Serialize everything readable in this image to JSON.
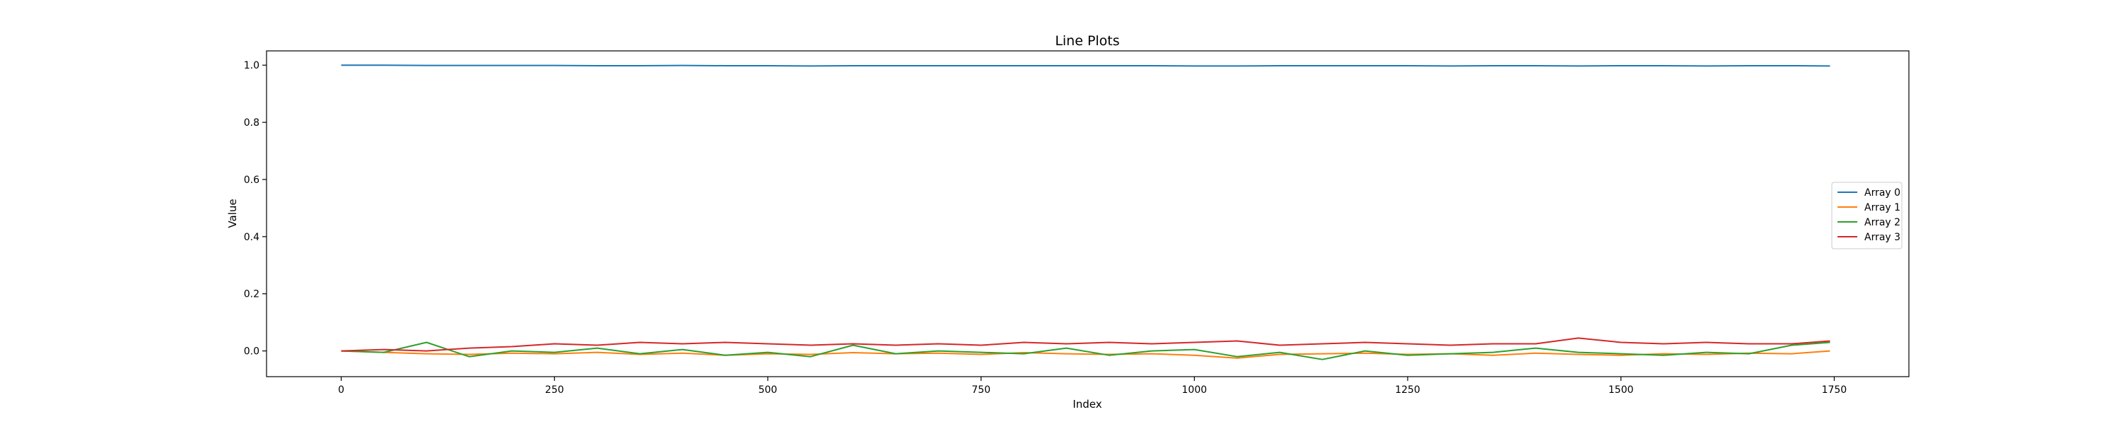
{
  "chart_data": {
    "type": "line",
    "title": "Line Plots",
    "xlabel": "Index",
    "ylabel": "Value",
    "xlim": [
      -87.5,
      1837.5
    ],
    "ylim": [
      -0.09,
      1.05
    ],
    "xticks": [
      0,
      250,
      500,
      750,
      1000,
      1250,
      1500,
      1750
    ],
    "yticks": [
      0.0,
      0.2,
      0.4,
      0.6,
      0.8,
      1.0
    ],
    "xtick_labels": [
      "0",
      "250",
      "500",
      "750",
      "1000",
      "1250",
      "1500",
      "1750"
    ],
    "ytick_labels": [
      "0.0",
      "0.2",
      "0.4",
      "0.6",
      "0.8",
      "1.0"
    ],
    "grid": false,
    "legend_position": "center-right",
    "x": [
      0,
      50,
      100,
      150,
      200,
      250,
      300,
      350,
      400,
      450,
      500,
      550,
      600,
      650,
      700,
      750,
      800,
      850,
      900,
      950,
      1000,
      1050,
      1100,
      1150,
      1200,
      1250,
      1300,
      1350,
      1400,
      1450,
      1500,
      1550,
      1600,
      1650,
      1700,
      1745
    ],
    "series": [
      {
        "name": "Array 0",
        "color": "#1f77b4",
        "values": [
          1.0,
          1.0,
          0.999,
          0.999,
          0.999,
          0.999,
          0.998,
          0.998,
          0.999,
          0.998,
          0.998,
          0.997,
          0.998,
          0.998,
          0.998,
          0.998,
          0.998,
          0.998,
          0.998,
          0.998,
          0.997,
          0.997,
          0.998,
          0.998,
          0.998,
          0.998,
          0.997,
          0.998,
          0.998,
          0.997,
          0.998,
          0.998,
          0.997,
          0.998,
          0.998,
          0.997
        ]
      },
      {
        "name": "Array 1",
        "color": "#ff7f0e",
        "values": [
          0.0,
          -0.005,
          -0.01,
          -0.012,
          -0.008,
          -0.01,
          -0.005,
          -0.012,
          -0.008,
          -0.015,
          -0.01,
          -0.012,
          -0.006,
          -0.01,
          -0.008,
          -0.012,
          -0.006,
          -0.01,
          -0.012,
          -0.01,
          -0.015,
          -0.025,
          -0.012,
          -0.01,
          -0.008,
          -0.012,
          -0.01,
          -0.015,
          -0.008,
          -0.012,
          -0.015,
          -0.01,
          -0.012,
          -0.008,
          -0.01,
          0.0
        ]
      },
      {
        "name": "Array 2",
        "color": "#2ca02c",
        "values": [
          0.0,
          -0.005,
          0.03,
          -0.02,
          0.0,
          -0.005,
          0.01,
          -0.01,
          0.005,
          -0.015,
          -0.005,
          -0.02,
          0.02,
          -0.01,
          0.0,
          -0.005,
          -0.01,
          0.01,
          -0.015,
          0.0,
          0.005,
          -0.02,
          -0.005,
          -0.03,
          0.0,
          -0.015,
          -0.01,
          -0.005,
          0.01,
          -0.005,
          -0.01,
          -0.015,
          -0.005,
          -0.01,
          0.02,
          0.03
        ]
      },
      {
        "name": "Array 3",
        "color": "#d62728",
        "values": [
          0.0,
          0.005,
          0.0,
          0.01,
          0.015,
          0.025,
          0.02,
          0.03,
          0.025,
          0.03,
          0.025,
          0.02,
          0.025,
          0.02,
          0.025,
          0.02,
          0.03,
          0.025,
          0.03,
          0.025,
          0.03,
          0.035,
          0.02,
          0.025,
          0.03,
          0.025,
          0.02,
          0.025,
          0.025,
          0.045,
          0.03,
          0.025,
          0.03,
          0.025,
          0.025,
          0.035
        ]
      }
    ]
  }
}
